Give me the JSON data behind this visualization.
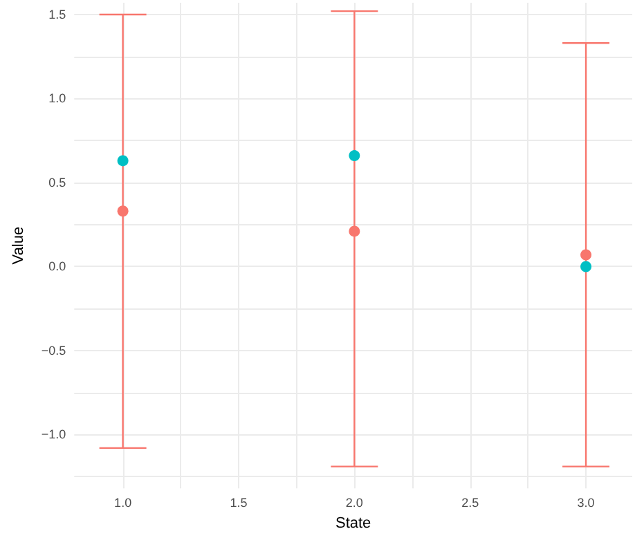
{
  "chart_data": {
    "type": "scatter",
    "xlabel": "State",
    "ylabel": "Value",
    "xlim": [
      0.79,
      3.2
    ],
    "xticks": [
      {
        "value": 1,
        "label": "1.0"
      },
      {
        "value": 1.25,
        "label": null
      },
      {
        "value": 1.5,
        "label": "1.5"
      },
      {
        "value": 1.75,
        "label": null
      },
      {
        "value": 2,
        "label": "2.0"
      },
      {
        "value": 2.25,
        "label": null
      },
      {
        "value": 2.5,
        "label": "2.5"
      },
      {
        "value": 2.75,
        "label": null
      },
      {
        "value": 3,
        "label": "3.0"
      }
    ],
    "ylim": [
      -1.32,
      1.57
    ],
    "yticks": [
      {
        "value": -1.25,
        "label": null
      },
      {
        "value": -1,
        "label": "−1.0"
      },
      {
        "value": -0.75,
        "label": null
      },
      {
        "value": -0.5,
        "label": "−0.5"
      },
      {
        "value": -0.25,
        "label": null
      },
      {
        "value": 0,
        "label": "0.0"
      },
      {
        "value": 0.25,
        "label": null
      },
      {
        "value": 0.5,
        "label": "0.5"
      },
      {
        "value": 0.75,
        "label": null
      },
      {
        "value": 1,
        "label": "1.0"
      },
      {
        "value": 1.25,
        "label": null
      },
      {
        "value": 1.5,
        "label": "1.5"
      }
    ],
    "grid": true,
    "marker": "circle",
    "x": [
      1,
      2,
      3
    ],
    "series": [
      {
        "color": "#f8766d",
        "values": [
          0.33,
          0.21,
          0.07
        ],
        "errors": [
          [
            -1.08,
            1.5
          ],
          [
            -1.19,
            1.52
          ],
          [
            -1.19,
            1.33
          ]
        ]
      },
      {
        "color": "#00bfc4",
        "values": [
          0.63,
          0.66,
          0.0
        ]
      }
    ]
  }
}
